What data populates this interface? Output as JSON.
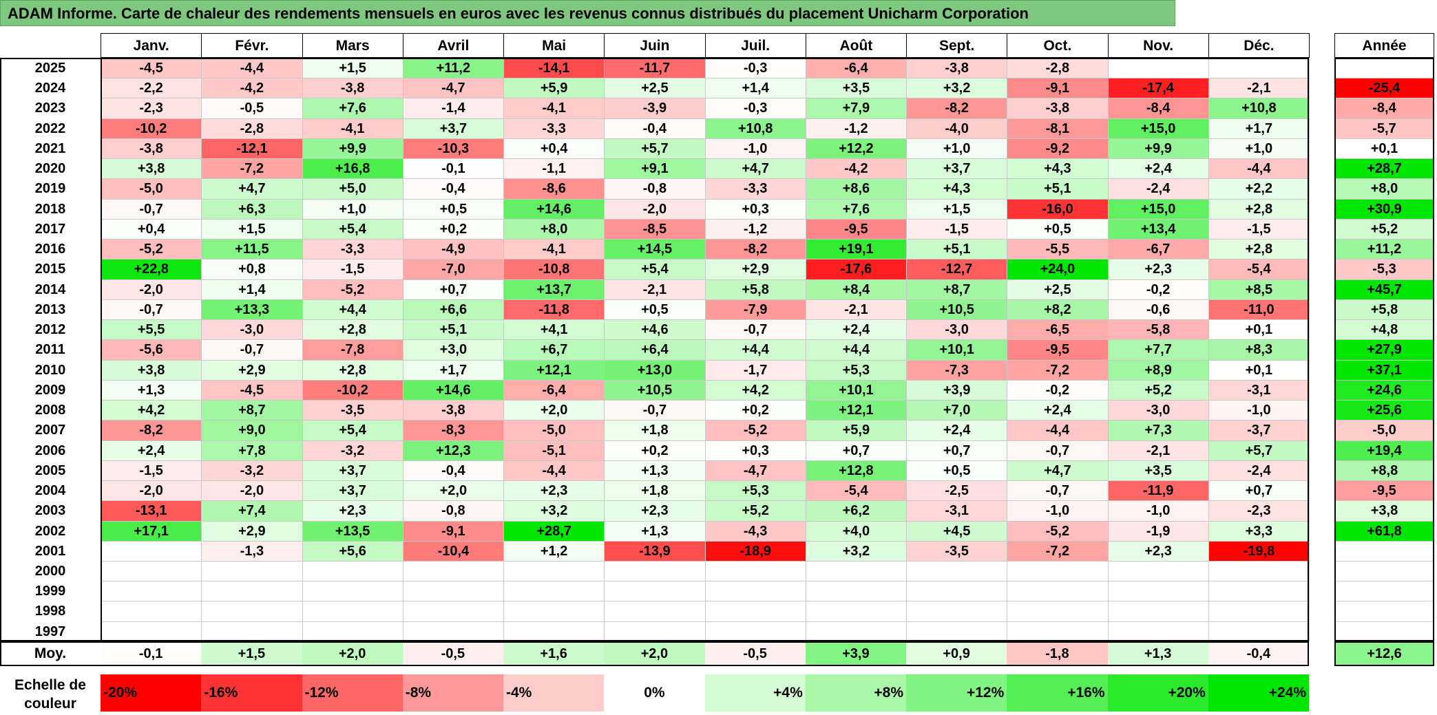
{
  "title": "ADAM Informe. Carte de chaleur des rendements mensuels en euros avec les revenus connus distribués du placement Unicharm Corporation",
  "colors": {
    "neg_max": "#ff0000",
    "neutral": "#ffffff",
    "pos_max": "#00e600",
    "title_bg": "#7dc77e"
  },
  "chart_data": {
    "type": "heatmap",
    "title": "ADAM Informe. Carte de chaleur des rendements mensuels en euros avec les revenus connus distribués du placement Unicharm Corporation",
    "months": [
      "Janv.",
      "Févr.",
      "Mars",
      "Avril",
      "Mai",
      "Juin",
      "Juil.",
      "Août",
      "Sept.",
      "Oct.",
      "Nov.",
      "Déc."
    ],
    "annual_header": "Année",
    "rows": [
      {
        "year": "2025",
        "values": [
          "-4,5",
          "-4,4",
          "+1,5",
          "+11,2",
          "-14,1",
          "-11,7",
          "-0,3",
          "-6,4",
          "-3,8",
          "-2,8",
          "",
          ""
        ],
        "annual": ""
      },
      {
        "year": "2024",
        "values": [
          "-2,2",
          "-4,2",
          "-3,8",
          "-4,7",
          "+5,9",
          "+2,5",
          "+1,4",
          "+3,5",
          "+3,2",
          "-9,1",
          "-17,4",
          "-2,1"
        ],
        "annual": "-25,4"
      },
      {
        "year": "2023",
        "values": [
          "-2,3",
          "-0,5",
          "+7,6",
          "-1,4",
          "-4,1",
          "-3,9",
          "-0,3",
          "+7,9",
          "-8,2",
          "-3,8",
          "-8,4",
          "+10,8"
        ],
        "annual": "-8,4"
      },
      {
        "year": "2022",
        "values": [
          "-10,2",
          "-2,8",
          "-4,1",
          "+3,7",
          "-3,3",
          "-0,4",
          "+10,8",
          "-1,2",
          "-4,0",
          "-8,1",
          "+15,0",
          "+1,7"
        ],
        "annual": "-5,7"
      },
      {
        "year": "2021",
        "values": [
          "-3,8",
          "-12,1",
          "+9,9",
          "-10,3",
          "+0,4",
          "+5,7",
          "-1,0",
          "+12,2",
          "+1,0",
          "-9,2",
          "+9,9",
          "+1,0"
        ],
        "annual": "+0,1"
      },
      {
        "year": "2020",
        "values": [
          "+3,8",
          "-7,2",
          "+16,8",
          "-0,1",
          "-1,1",
          "+9,1",
          "+4,7",
          "-4,2",
          "+3,7",
          "+4,3",
          "+2,4",
          "-4,4"
        ],
        "annual": "+28,7"
      },
      {
        "year": "2019",
        "values": [
          "-5,0",
          "+4,7",
          "+5,0",
          "-0,4",
          "-8,6",
          "-0,8",
          "-3,3",
          "+8,6",
          "+4,3",
          "+5,1",
          "-2,4",
          "+2,2"
        ],
        "annual": "+8,0"
      },
      {
        "year": "2018",
        "values": [
          "-0,7",
          "+6,3",
          "+1,0",
          "+0,5",
          "+14,6",
          "-2,0",
          "+0,3",
          "+7,6",
          "+1,5",
          "-16,0",
          "+15,0",
          "+2,8"
        ],
        "annual": "+30,9"
      },
      {
        "year": "2017",
        "values": [
          "+0,4",
          "+1,5",
          "+5,4",
          "+0,2",
          "+8,0",
          "-8,5",
          "-1,2",
          "-9,5",
          "-1,5",
          "+0,5",
          "+13,4",
          "-1,5"
        ],
        "annual": "+5,2"
      },
      {
        "year": "2016",
        "values": [
          "-5,2",
          "+11,5",
          "-3,3",
          "-4,9",
          "-4,1",
          "+14,5",
          "-8,2",
          "+19,1",
          "+5,1",
          "-5,5",
          "-6,7",
          "+2,8"
        ],
        "annual": "+11,2"
      },
      {
        "year": "2015",
        "values": [
          "+22,8",
          "+0,8",
          "-1,5",
          "-7,0",
          "-10,8",
          "+5,4",
          "+2,9",
          "-17,6",
          "-12,7",
          "+24,0",
          "+2,3",
          "-5,4"
        ],
        "annual": "-5,3"
      },
      {
        "year": "2014",
        "values": [
          "-2,0",
          "+1,4",
          "-5,2",
          "+0,7",
          "+13,7",
          "-2,1",
          "+5,8",
          "+8,4",
          "+8,7",
          "+2,5",
          "-0,2",
          "+8,5"
        ],
        "annual": "+45,7"
      },
      {
        "year": "2013",
        "values": [
          "-0,7",
          "+13,3",
          "+4,4",
          "+6,6",
          "-11,8",
          "+0,5",
          "-7,9",
          "-2,1",
          "+10,5",
          "+8,2",
          "-0,6",
          "-11,0"
        ],
        "annual": "+5,8"
      },
      {
        "year": "2012",
        "values": [
          "+5,5",
          "-3,0",
          "+2,8",
          "+5,1",
          "+4,1",
          "+4,6",
          "-0,7",
          "+2,4",
          "-3,0",
          "-6,5",
          "-5,8",
          "+0,1"
        ],
        "annual": "+4,8"
      },
      {
        "year": "2011",
        "values": [
          "-5,6",
          "-0,7",
          "-7,8",
          "+3,0",
          "+6,7",
          "+6,4",
          "+4,4",
          "+4,4",
          "+10,1",
          "-9,5",
          "+7,7",
          "+8,3"
        ],
        "annual": "+27,9"
      },
      {
        "year": "2010",
        "values": [
          "+3,8",
          "+2,9",
          "+2,8",
          "+1,7",
          "+12,1",
          "+13,0",
          "-1,7",
          "+5,3",
          "-7,3",
          "-7,2",
          "+8,9",
          "+0,1"
        ],
        "annual": "+37,1"
      },
      {
        "year": "2009",
        "values": [
          "+1,3",
          "-4,5",
          "-10,2",
          "+14,6",
          "-6,4",
          "+10,5",
          "+4,2",
          "+10,1",
          "+3,9",
          "-0,2",
          "+5,2",
          "-3,1"
        ],
        "annual": "+24,6"
      },
      {
        "year": "2008",
        "values": [
          "+4,2",
          "+8,7",
          "-3,5",
          "-3,8",
          "+2,0",
          "-0,7",
          "+0,2",
          "+12,1",
          "+7,0",
          "+2,4",
          "-3,0",
          "-1,0"
        ],
        "annual": "+25,6"
      },
      {
        "year": "2007",
        "values": [
          "-8,2",
          "+9,0",
          "+5,4",
          "-8,3",
          "-5,0",
          "+1,8",
          "-5,2",
          "+5,9",
          "+2,4",
          "-4,4",
          "+7,3",
          "-3,7"
        ],
        "annual": "-5,0"
      },
      {
        "year": "2006",
        "values": [
          "+2,4",
          "+7,8",
          "-3,2",
          "+12,3",
          "-5,1",
          "+0,2",
          "+0,3",
          "+0,7",
          "+0,7",
          "-0,7",
          "-2,1",
          "+5,7"
        ],
        "annual": "+19,4"
      },
      {
        "year": "2005",
        "values": [
          "-1,5",
          "-3,2",
          "+3,7",
          "-0,4",
          "-4,4",
          "+1,3",
          "-4,7",
          "+12,8",
          "+0,5",
          "+4,7",
          "+3,5",
          "-2,4"
        ],
        "annual": "+8,8"
      },
      {
        "year": "2004",
        "values": [
          "-2,0",
          "-2,0",
          "+3,7",
          "+2,0",
          "+2,3",
          "+1,8",
          "+5,3",
          "-5,4",
          "-2,5",
          "-0,7",
          "-11,9",
          "+0,7"
        ],
        "annual": "-9,5"
      },
      {
        "year": "2003",
        "values": [
          "-13,1",
          "+7,4",
          "+2,3",
          "-0,8",
          "+3,2",
          "+2,3",
          "+5,2",
          "+6,2",
          "-3,1",
          "-1,0",
          "-1,0",
          "-2,3"
        ],
        "annual": "+3,8"
      },
      {
        "year": "2002",
        "values": [
          "+17,1",
          "+2,9",
          "+13,5",
          "-9,1",
          "+28,7",
          "+1,3",
          "-4,3",
          "+4,0",
          "+4,5",
          "-5,2",
          "-1,9",
          "+3,3"
        ],
        "annual": "+61,8"
      },
      {
        "year": "2001",
        "values": [
          "",
          "-1,3",
          "+5,6",
          "-10,4",
          "+1,2",
          "-13,9",
          "-18,9",
          "+3,2",
          "-3,5",
          "-7,2",
          "+2,3",
          "-19,8"
        ],
        "annual": ""
      },
      {
        "year": "2000",
        "values": [
          "",
          "",
          "",
          "",
          "",
          "",
          "",
          "",
          "",
          "",
          "",
          ""
        ],
        "annual": ""
      },
      {
        "year": "1999",
        "values": [
          "",
          "",
          "",
          "",
          "",
          "",
          "",
          "",
          "",
          "",
          "",
          ""
        ],
        "annual": ""
      },
      {
        "year": "1998",
        "values": [
          "",
          "",
          "",
          "",
          "",
          "",
          "",
          "",
          "",
          "",
          "",
          ""
        ],
        "annual": ""
      },
      {
        "year": "1997",
        "values": [
          "",
          "",
          "",
          "",
          "",
          "",
          "",
          "",
          "",
          "",
          "",
          ""
        ],
        "annual": ""
      }
    ],
    "average": {
      "label": "Moy.",
      "values": [
        "-0,1",
        "+1,5",
        "+2,0",
        "-0,5",
        "+1,6",
        "+2,0",
        "-0,5",
        "+3,9",
        "+0,9",
        "-1,8",
        "+1,3",
        "-0,4"
      ],
      "annual": "+12,6"
    },
    "color_scale": {
      "label": "Echelle de couleur",
      "stops": [
        "-20%",
        "-16%",
        "-12%",
        "-8%",
        "-4%",
        "0%",
        "+4%",
        "+8%",
        "+12%",
        "+16%",
        "+20%",
        "+24%"
      ]
    }
  }
}
